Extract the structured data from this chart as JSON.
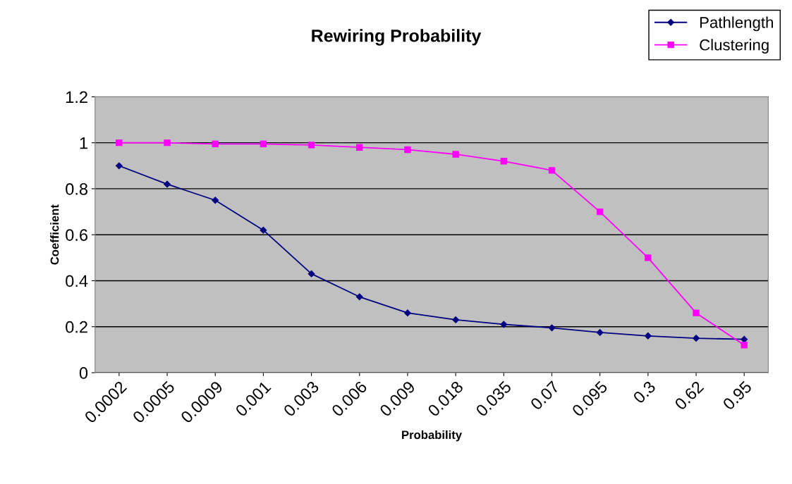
{
  "chart_data": {
    "type": "line",
    "title": "Rewiring Probability",
    "xlabel": "Probability",
    "ylabel": "Coefficient",
    "categories": [
      "0.0002",
      "0.0005",
      "0.0009",
      "0.001",
      "0.003",
      "0.006",
      "0.009",
      "0.018",
      "0.035",
      "0.07",
      "0.095",
      "0.3",
      "0.62",
      "0.95"
    ],
    "series": [
      {
        "name": "Pathlength",
        "color": "#000080",
        "marker": "diamond",
        "values": [
          0.9,
          0.82,
          0.75,
          0.62,
          0.43,
          0.33,
          0.26,
          0.23,
          0.21,
          0.195,
          0.175,
          0.16,
          0.15,
          0.145
        ]
      },
      {
        "name": "Clustering",
        "color": "#ff00ff",
        "marker": "square",
        "values": [
          1.0,
          1.0,
          0.995,
          0.995,
          0.99,
          0.98,
          0.97,
          0.95,
          0.92,
          0.88,
          0.7,
          0.5,
          0.26,
          0.12
        ]
      }
    ],
    "ylim": [
      0,
      1.2
    ],
    "yticks": [
      0,
      0.2,
      0.4,
      0.6,
      0.8,
      1,
      1.2
    ],
    "grid": "y",
    "legend": "top right"
  }
}
